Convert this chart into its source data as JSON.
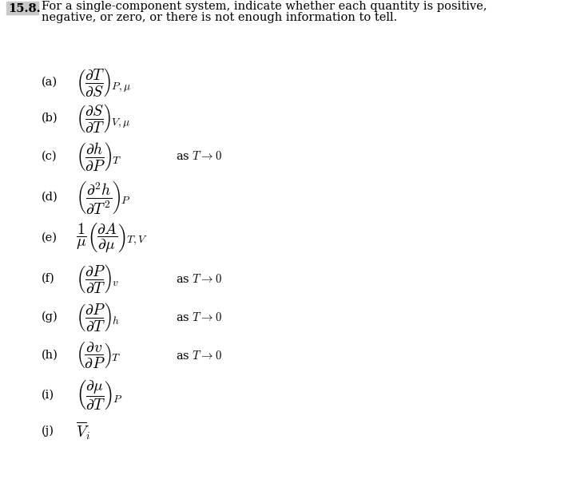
{
  "title_number": "15.8.",
  "title_line1": "For a single-component system, indicate whether each quantity is positive,",
  "title_line2": "negative, or zero, or there is not enough information to tell.",
  "background_color": "#ffffff",
  "text_color": "#000000",
  "figsize": [
    7.06,
    6.0
  ],
  "dpi": 100,
  "items": [
    {
      "label": "(a)",
      "math": "$\\left(\\dfrac{\\partial T}{\\partial S}\\right)_{\\!P,\\mu}$",
      "suffix": ""
    },
    {
      "label": "(b)",
      "math": "$\\left(\\dfrac{\\partial S}{\\partial T}\\right)_{\\!V,\\mu}$",
      "suffix": ""
    },
    {
      "label": "(c)",
      "math": "$\\left(\\dfrac{\\partial h}{\\partial P}\\right)_{\\!T}$",
      "suffix": "as $T \\rightarrow 0$"
    },
    {
      "label": "(d)",
      "math": "$\\left(\\dfrac{\\partial^{2} h}{\\partial T^{2}}\\right)_{\\!P}$",
      "suffix": ""
    },
    {
      "label": "(e)",
      "math": "$\\dfrac{1}{\\mu}\\left(\\dfrac{\\partial A}{\\partial \\mu}\\right)_{\\!T,V}$",
      "suffix": ""
    },
    {
      "label": "(f)",
      "math": "$\\left(\\dfrac{\\partial P}{\\partial T}\\right)_{\\!v}$",
      "suffix": "as $T \\rightarrow 0$"
    },
    {
      "label": "(g)",
      "math": "$\\left(\\dfrac{\\partial P}{\\partial T}\\right)_{\\!h}$",
      "suffix": "as $T \\rightarrow 0$"
    },
    {
      "label": "(h)",
      "math": "$\\left(\\dfrac{\\partial v}{\\partial P}\\right)_{\\!T}$",
      "suffix": "as $T \\rightarrow 0$"
    },
    {
      "label": "(i)",
      "math": "$\\left(\\dfrac{\\partial \\mu}{\\partial T}\\right)_{\\!P}$",
      "suffix": ""
    },
    {
      "label": "(j)",
      "math": "$\\overline{V}_{i}$",
      "suffix": ""
    }
  ]
}
